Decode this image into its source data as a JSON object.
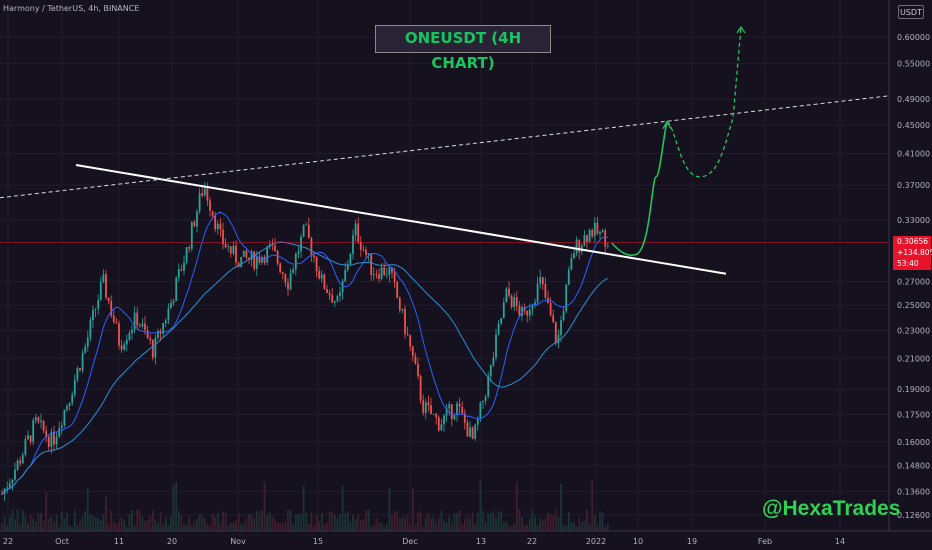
{
  "header": {
    "symbol_line": "Harmony / TetherUS, 4h, BINANCE"
  },
  "title": "ONEUSDT (4H CHART)",
  "watermark": "@HexaTrades",
  "unit_button": "USDT",
  "price_badge": {
    "price": "0.30656",
    "change": "+134.80%",
    "countdown": "53:40"
  },
  "colors": {
    "background": "#16111f",
    "bull": "#26a69a",
    "bear": "#ef5350",
    "ma_fast": "#2962ff",
    "ma_slow": "#2a8fd6",
    "trendline": "#ffffff",
    "projection": "#22c55e",
    "current_price": "#e8132b",
    "title": "#17c55e"
  },
  "chart_data": {
    "type": "candlestick",
    "y_scale": "log",
    "y_ticks": [
      "0.60000",
      "0.55000",
      "0.49000",
      "0.45000",
      "0.41000",
      "0.37000",
      "0.33000",
      "0.27000",
      "0.25000",
      "0.23000",
      "0.21000",
      "0.19000",
      "0.17500",
      "0.16000",
      "0.14800",
      "0.13600",
      "0.12600"
    ],
    "x_ticks": [
      "22",
      "Oct",
      "11",
      "20",
      "Nov",
      "15",
      "Dec",
      "13",
      "22",
      "2022",
      "10",
      "19",
      "Feb",
      "14"
    ],
    "current_price": 0.30656,
    "close_path": [
      0.135,
      0.15,
      0.17,
      0.16,
      0.185,
      0.22,
      0.27,
      0.22,
      0.24,
      0.215,
      0.25,
      0.3,
      0.37,
      0.31,
      0.29,
      0.29,
      0.3,
      0.27,
      0.32,
      0.27,
      0.25,
      0.32,
      0.28,
      0.28,
      0.23,
      0.18,
      0.17,
      0.18,
      0.16,
      0.2,
      0.26,
      0.24,
      0.27,
      0.22,
      0.3,
      0.32,
      0.31
    ],
    "resistance_line": {
      "start_price": 0.395,
      "end_price": 0.277
    },
    "rising_dashed_line": {
      "start_price": 0.355,
      "end_price": 0.495
    },
    "projection_path": [
      0.306,
      0.295,
      0.38,
      0.455,
      0.38,
      0.46,
      0.62
    ]
  }
}
